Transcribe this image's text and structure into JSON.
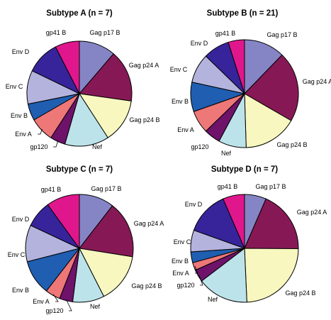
{
  "chart_data": [
    {
      "type": "pie",
      "title": "Subtype A (n = 7)",
      "slices": [
        {
          "label": "Gag p17 B",
          "value": 12
        },
        {
          "label": "Gag p24 A",
          "value": 17
        },
        {
          "label": "Gag p24 B",
          "value": 14.5
        },
        {
          "label": "Nef",
          "value": 14.5
        },
        {
          "label": "gp120",
          "value": 5
        },
        {
          "label": "Env A",
          "value": 8
        },
        {
          "label": "Env B",
          "value": 5.5
        },
        {
          "label": "Env C",
          "value": 11
        },
        {
          "label": "Env D",
          "value": 11
        },
        {
          "label": "gp41 B",
          "value": 8
        }
      ]
    },
    {
      "type": "pie",
      "title": "Subtype B (n = 21)",
      "slices": [
        {
          "label": "Gag p17 B",
          "value": 12.5
        },
        {
          "label": "Gag p24 A",
          "value": 21.5
        },
        {
          "label": "Gag p24 B",
          "value": 16.5
        },
        {
          "label": "Nef",
          "value": 8.5
        },
        {
          "label": "gp120",
          "value": 5
        },
        {
          "label": "Env A",
          "value": 7
        },
        {
          "label": "Env B",
          "value": 9
        },
        {
          "label": "Env C",
          "value": 9
        },
        {
          "label": "Env D",
          "value": 8
        },
        {
          "label": "gp41 B",
          "value": 5
        }
      ]
    },
    {
      "type": "pie",
      "title": "Subtype C (n = 7)",
      "slices": [
        {
          "label": "Gag p17 B",
          "value": 10.5
        },
        {
          "label": "Gag p24 A",
          "value": 17
        },
        {
          "label": "Gag p24 B",
          "value": 15
        },
        {
          "label": "Nef",
          "value": 9.5
        },
        {
          "label": "gp120",
          "value": 4
        },
        {
          "label": "Env A",
          "value": 4.5
        },
        {
          "label": "Env B",
          "value": 10.5
        },
        {
          "label": "Env C",
          "value": 11
        },
        {
          "label": "Env D",
          "value": 8
        },
        {
          "label": "gp41 B",
          "value": 10
        }
      ]
    },
    {
      "type": "pie",
      "title": "Subtype D (n = 7)",
      "slices": [
        {
          "label": "Gag p17 B",
          "value": 7
        },
        {
          "label": "Gag p24 A",
          "value": 20
        },
        {
          "label": "Gag p24 B",
          "value": 26
        },
        {
          "label": "Nef",
          "value": 16.5
        },
        {
          "label": "gp120",
          "value": 4
        },
        {
          "label": "Env A",
          "value": 2.5
        },
        {
          "label": "Env B",
          "value": 3.5
        },
        {
          "label": "Env C",
          "value": 7
        },
        {
          "label": "Env D",
          "value": 14
        },
        {
          "label": "gp41 B",
          "value": 7
        }
      ]
    }
  ],
  "colors": {
    "Gag p17 B": "#8585c6",
    "Gag p24 A": "#861955",
    "Gag p24 B": "#f7f7bf",
    "Nef": "#bce3ea",
    "gp120": "#6e126a",
    "Env A": "#ee7777",
    "Env B": "#1f5eb1",
    "Env C": "#b3b3dd",
    "Env D": "#37249a",
    "gp41 B": "#e0178c"
  }
}
